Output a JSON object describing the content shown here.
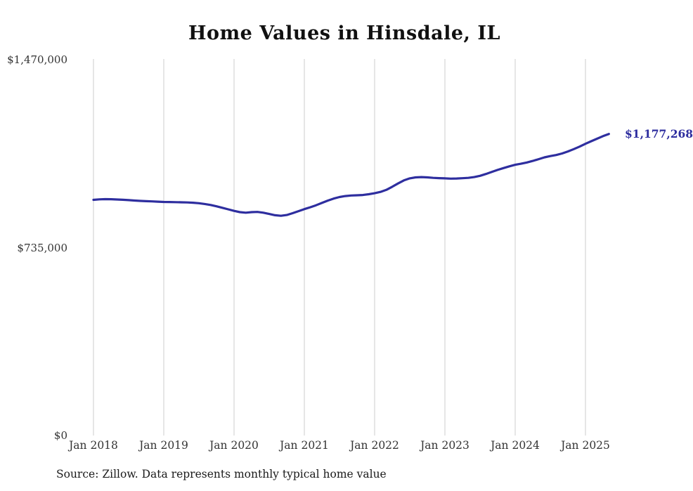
{
  "title": "Home Values in Hinsdale, IL",
  "source_note": "Source: Zillow. Data represents monthly typical home value",
  "end_label": "$1,177,268",
  "colors": {
    "line": "#2e2e9f",
    "grid": "#cccccc",
    "text": "#333333",
    "title": "#111111"
  },
  "chart_data": {
    "type": "line",
    "title": "Home Values in Hinsdale, IL",
    "x_tick_labels": [
      "Jan 2018",
      "Jan 2019",
      "Jan 2020",
      "Jan 2021",
      "Jan 2022",
      "Jan 2023",
      "Jan 2024",
      "Jan 2025"
    ],
    "y_tick_labels": [
      "$0",
      "$735,000",
      "$1,470,000"
    ],
    "ylim": [
      0,
      1470000
    ],
    "x_start": "2018-01",
    "x_end": "2025-05",
    "x_frequency": "monthly",
    "grid": "vertical-only",
    "legend": "none",
    "end_value": 1177268,
    "values": [
      920000,
      922000,
      923000,
      922500,
      921500,
      920500,
      919000,
      917500,
      916000,
      915000,
      914000,
      913000,
      912000,
      911500,
      911000,
      910500,
      910000,
      909000,
      907000,
      904000,
      900000,
      895000,
      889000,
      883000,
      877000,
      872000,
      870000,
      872000,
      873000,
      870000,
      865000,
      860000,
      858000,
      861000,
      868000,
      876000,
      884000,
      891000,
      899000,
      908000,
      917000,
      925000,
      931000,
      935000,
      937000,
      938000,
      939000,
      942000,
      946000,
      951000,
      959000,
      971000,
      984000,
      996000,
      1004000,
      1008000,
      1009000,
      1008000,
      1006000,
      1005000,
      1004000,
      1003000,
      1003500,
      1004500,
      1006000,
      1009000,
      1014000,
      1021000,
      1029000,
      1037000,
      1044000,
      1051000,
      1057000,
      1061000,
      1066000,
      1072000,
      1079000,
      1086000,
      1091000,
      1095000,
      1101000,
      1109000,
      1118000,
      1128000,
      1139000,
      1149000,
      1159000,
      1169000,
      1177268
    ]
  }
}
